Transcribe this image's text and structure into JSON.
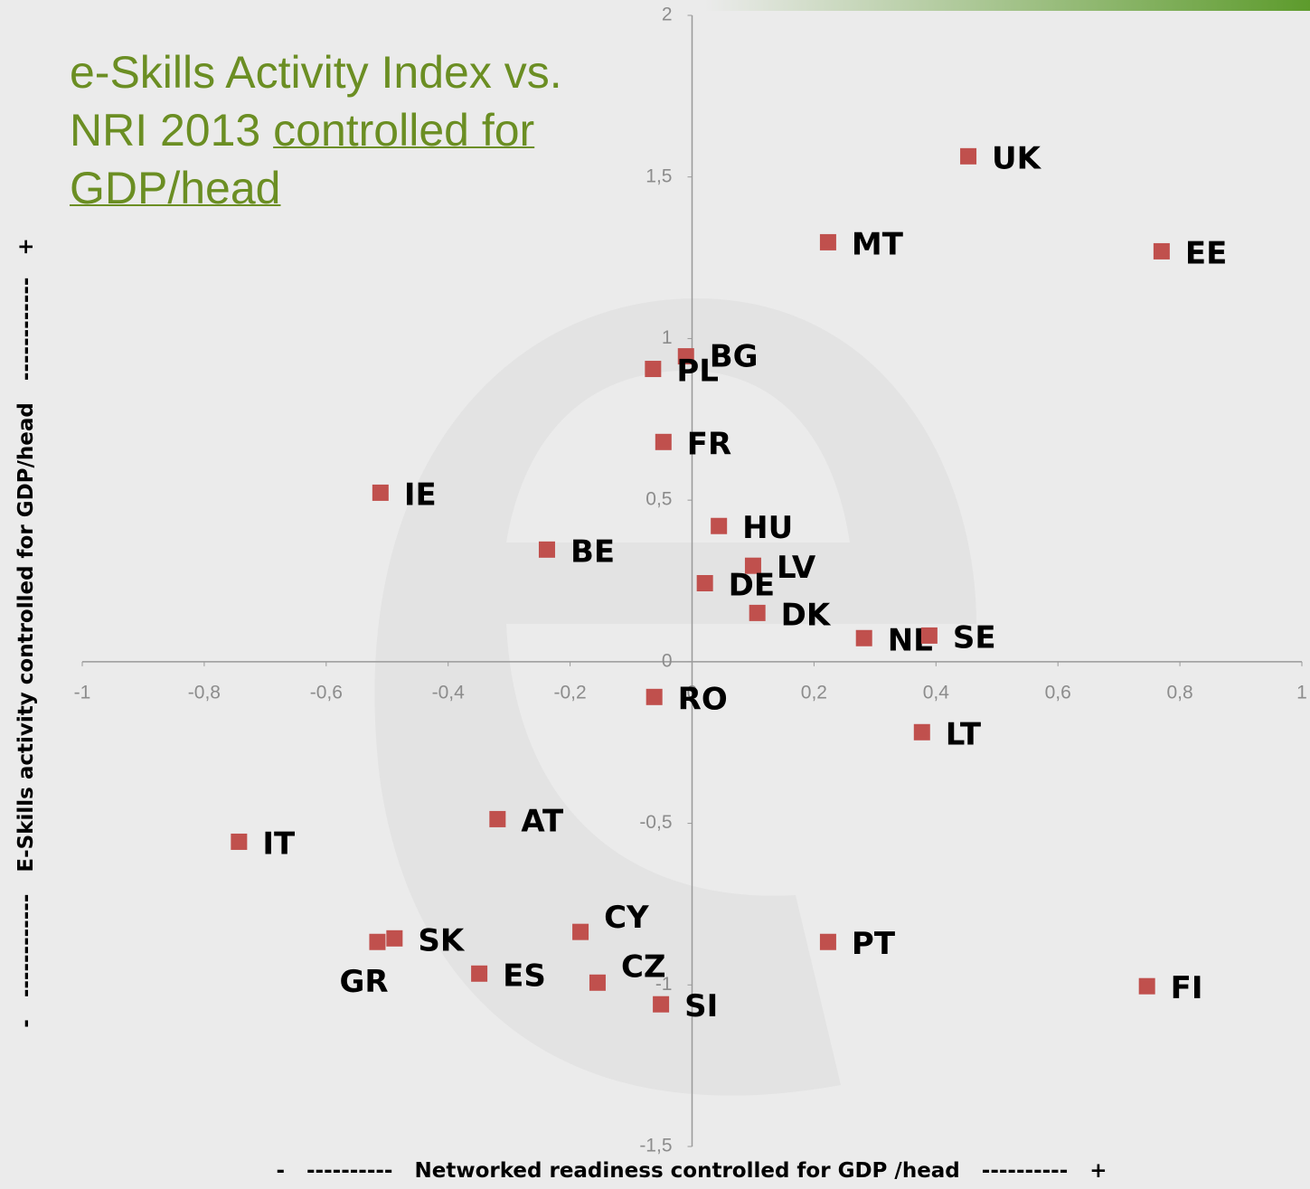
{
  "chart_data": {
    "type": "scatter",
    "title": "e-Skills Activity Index vs. NRI 2013",
    "title_underlined": "controlled for GDP/head",
    "x_label": "-   ----------   Networked readiness controlled for GDP /head   ----------   +",
    "y_label": "-   ------------   E-Skills activity controlled for GDP/head   ------------   +",
    "labels": [
      "UK",
      "MT",
      "EE",
      "BG",
      "PL",
      "FR",
      "IE",
      "BE",
      "HU",
      "LV",
      "DE",
      "DK",
      "NL",
      "SE",
      "RO",
      "LT",
      "AT",
      "IT",
      "CY",
      "SK",
      "GR",
      "PT",
      "ES",
      "CZ",
      "SI",
      "FI"
    ],
    "x": [
      0.453,
      0.223,
      0.77,
      -0.01,
      -0.064,
      -0.047,
      -0.511,
      -0.238,
      0.044,
      0.1,
      0.021,
      0.107,
      0.282,
      0.389,
      -0.062,
      0.377,
      -0.319,
      -0.743,
      -0.183,
      -0.488,
      -0.516,
      0.223,
      -0.349,
      -0.155,
      -0.051,
      0.746
    ],
    "values": [
      1.564,
      1.298,
      1.27,
      0.945,
      0.906,
      0.68,
      0.523,
      0.347,
      0.42,
      0.297,
      0.243,
      0.151,
      0.073,
      0.081,
      -0.109,
      -0.218,
      -0.487,
      -0.557,
      -0.836,
      -0.856,
      -0.867,
      -0.867,
      -0.965,
      -0.993,
      -1.06,
      -1.004
    ],
    "color": "#c0504d",
    "xlim": [
      -1,
      1
    ],
    "ylim": [
      -1.5,
      2
    ],
    "xticks": [
      -1,
      {
        "value": -0.8,
        "label": "-0,8"
      },
      {
        "value": -0.6,
        "label": "-0,6"
      },
      {
        "value": -0.4,
        "label": "-0,4"
      },
      {
        "value": -0.2,
        "label": "-0,2"
      },
      0,
      {
        "value": 0.2,
        "label": "0,2"
      },
      {
        "value": 0.4,
        "label": "0,4"
      },
      {
        "value": 0.6,
        "label": "0,6"
      },
      {
        "value": 0.8,
        "label": "0,8"
      },
      1
    ],
    "yticks": [
      {
        "value": -1.5,
        "label": "-1,5"
      },
      -1,
      {
        "value": -0.5,
        "label": "-0,5"
      },
      0,
      {
        "value": 0.5,
        "label": "0,5"
      },
      1,
      {
        "value": 1.5,
        "label": "1,5"
      },
      2
    ]
  }
}
